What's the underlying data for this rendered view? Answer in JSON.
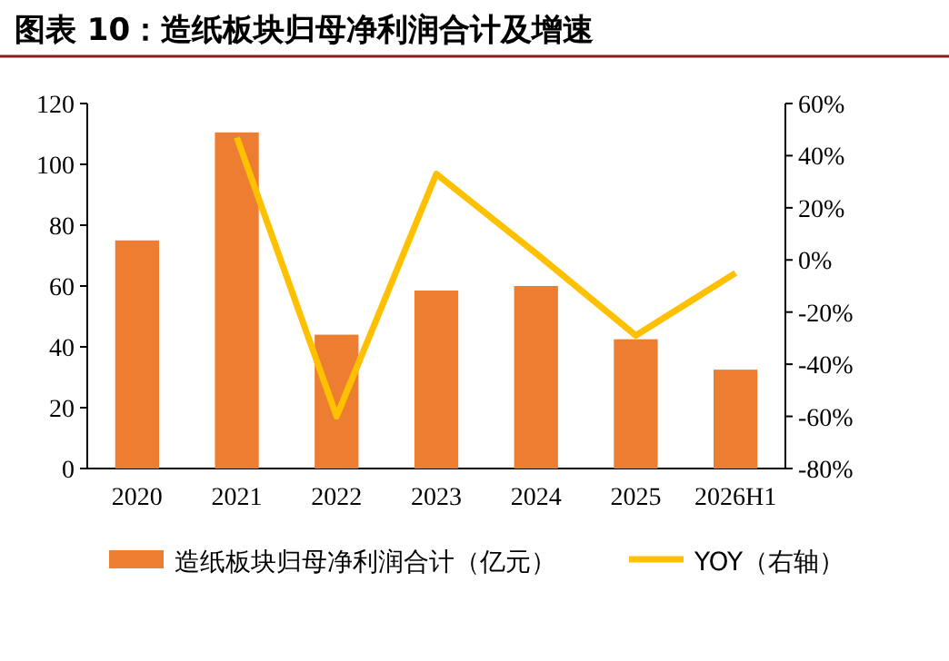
{
  "chart_data": {
    "type": "bar",
    "title": "图表 10：造纸板块归母净利润合计及增速",
    "categories": [
      "2020",
      "2021",
      "2022",
      "2023",
      "2024",
      "2025",
      "2026H1"
    ],
    "series": [
      {
        "name": "造纸板块归母净利润合计（亿元）",
        "color": "#ed7d31",
        "values": [
          75,
          110.5,
          44,
          58.5,
          60,
          42.5,
          32.5
        ]
      },
      {
        "name": "YOY（右轴）",
        "type": "line",
        "axis": "y2",
        "color": "#ffc000",
        "values": [
          null,
          47,
          -60,
          33,
          2.5,
          -29,
          -5
        ]
      }
    ],
    "ylim": [
      0,
      120
    ],
    "yticks": [
      0,
      20,
      40,
      60,
      80,
      100,
      120
    ],
    "y2lim": [
      -80,
      60
    ],
    "y2ticks": [
      {
        "value": -80,
        "label": "-80%"
      },
      {
        "value": -60,
        "label": "-60%"
      },
      {
        "value": -40,
        "label": "-40%"
      },
      {
        "value": -20,
        "label": "-20%"
      },
      {
        "value": 0,
        "label": "0%"
      },
      {
        "value": 20,
        "label": "20%"
      },
      {
        "value": 40,
        "label": "40%"
      },
      {
        "value": 60,
        "label": "60%"
      }
    ],
    "legend": "bottom",
    "grid": false,
    "marker": "none",
    "line_style": "solid"
  }
}
